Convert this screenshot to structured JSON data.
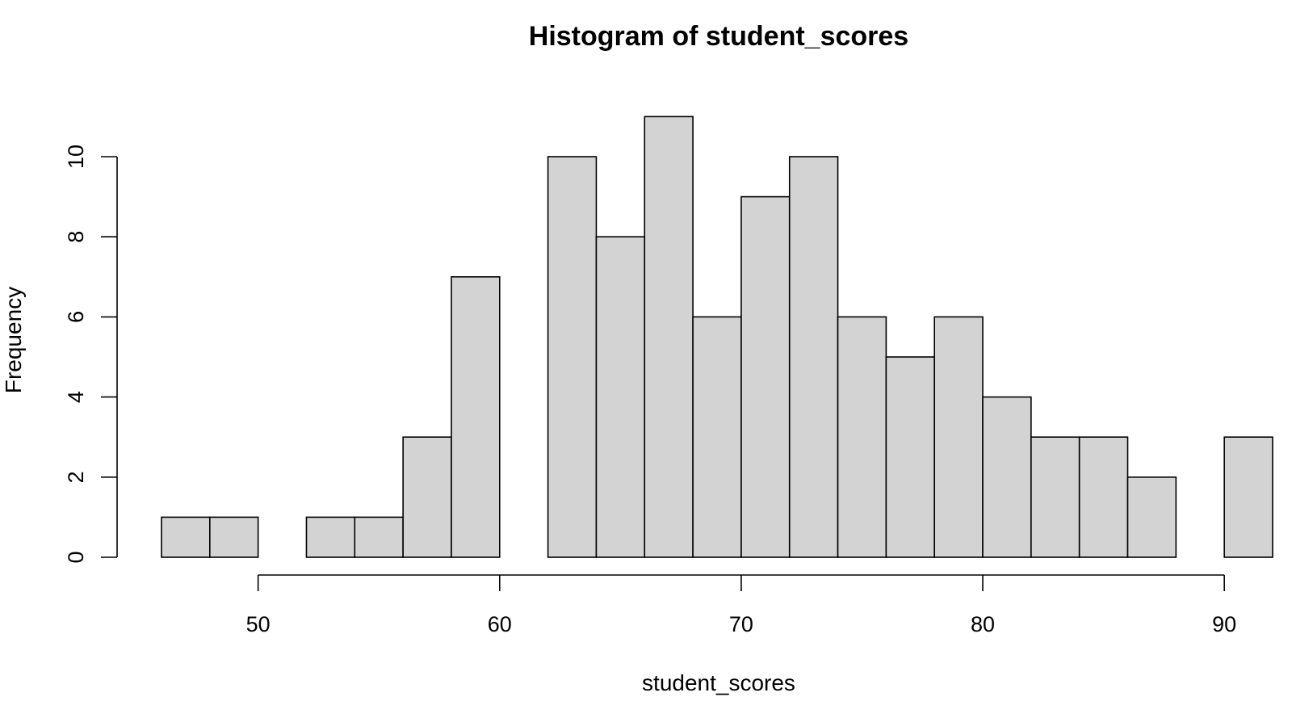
{
  "chart_data": {
    "type": "bar",
    "title": "Histogram of student_scores",
    "xlabel": "student_scores",
    "ylabel": "Frequency",
    "bin_width": 2,
    "bins": [
      {
        "start": 46,
        "end": 48,
        "count": 1
      },
      {
        "start": 48,
        "end": 50,
        "count": 1
      },
      {
        "start": 50,
        "end": 52,
        "count": 0
      },
      {
        "start": 52,
        "end": 54,
        "count": 1
      },
      {
        "start": 54,
        "end": 56,
        "count": 1
      },
      {
        "start": 56,
        "end": 58,
        "count": 3
      },
      {
        "start": 58,
        "end": 60,
        "count": 7
      },
      {
        "start": 60,
        "end": 62,
        "count": 0
      },
      {
        "start": 62,
        "end": 64,
        "count": 10
      },
      {
        "start": 64,
        "end": 66,
        "count": 8
      },
      {
        "start": 66,
        "end": 68,
        "count": 11
      },
      {
        "start": 68,
        "end": 70,
        "count": 6
      },
      {
        "start": 70,
        "end": 72,
        "count": 9
      },
      {
        "start": 72,
        "end": 74,
        "count": 10
      },
      {
        "start": 74,
        "end": 76,
        "count": 6
      },
      {
        "start": 76,
        "end": 78,
        "count": 5
      },
      {
        "start": 78,
        "end": 80,
        "count": 6
      },
      {
        "start": 80,
        "end": 82,
        "count": 4
      },
      {
        "start": 82,
        "end": 84,
        "count": 3
      },
      {
        "start": 84,
        "end": 86,
        "count": 3
      },
      {
        "start": 86,
        "end": 88,
        "count": 2
      },
      {
        "start": 88,
        "end": 90,
        "count": 0
      },
      {
        "start": 90,
        "end": 92,
        "count": 3
      }
    ],
    "x_ticks": [
      50,
      60,
      70,
      80,
      90
    ],
    "y_ticks": [
      0,
      2,
      4,
      6,
      8,
      10
    ],
    "x_tick_labels": [
      "50",
      "60",
      "70",
      "80",
      "90"
    ],
    "y_tick_labels": [
      "0",
      "2",
      "4",
      "6",
      "8",
      "10"
    ],
    "xlim": [
      46,
      92
    ],
    "ylim": [
      0,
      11
    ],
    "grid": false,
    "legend": "none",
    "bar_fill": "#d3d3d3",
    "bar_stroke": "#000000"
  }
}
